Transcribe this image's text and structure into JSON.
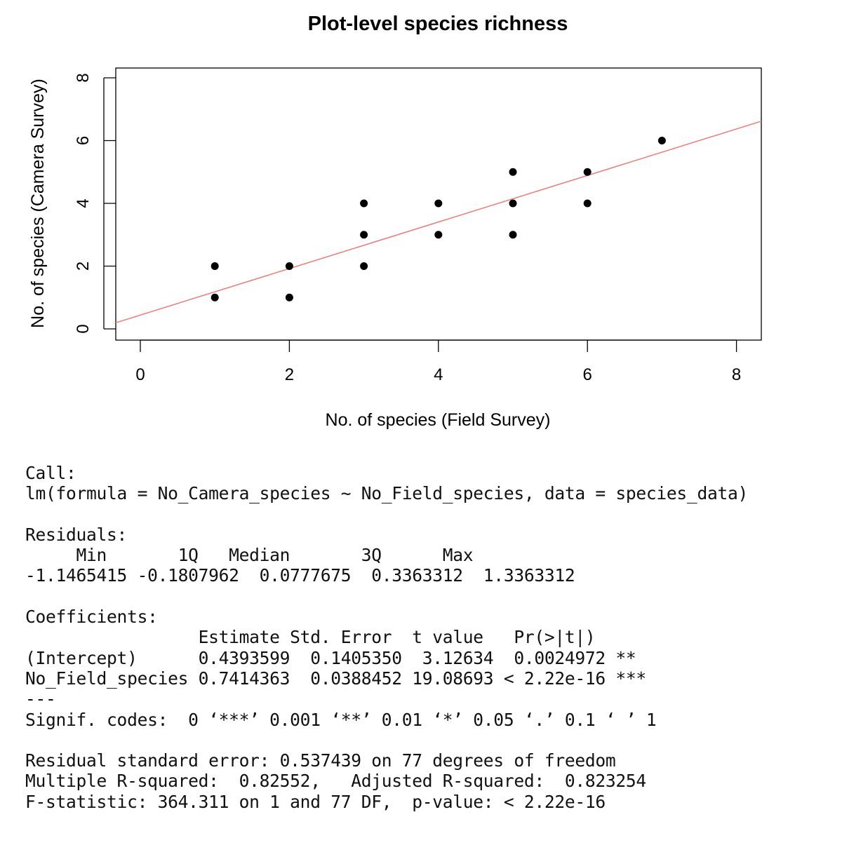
{
  "chart_data": {
    "type": "scatter",
    "title": "Plot-level species richness",
    "xlabel": "No. of species (Field Survey)",
    "ylabel": "No. of species (Camera Survey)",
    "xlim": [
      -0.33,
      8.35
    ],
    "ylim": [
      -0.36,
      8.32
    ],
    "xticks": [
      0,
      2,
      4,
      6,
      8
    ],
    "yticks": [
      0,
      2,
      4,
      6,
      8
    ],
    "grid": false,
    "points": [
      [
        1,
        2
      ],
      [
        1,
        1
      ],
      [
        2,
        2
      ],
      [
        2,
        1
      ],
      [
        3,
        4
      ],
      [
        3,
        3
      ],
      [
        3,
        2
      ],
      [
        4,
        4
      ],
      [
        4,
        3
      ],
      [
        5,
        5
      ],
      [
        5,
        4
      ],
      [
        5,
        3
      ],
      [
        6,
        5
      ],
      [
        6,
        4
      ],
      [
        7,
        6
      ]
    ],
    "fit_line": {
      "intercept": 0.4393599,
      "slope": 0.7414363,
      "color": "#f08080"
    },
    "point_color": "#000000"
  },
  "console": {
    "lines": [
      "Call:",
      "lm(formula = No_Camera_species ~ No_Field_species, data = species_data)",
      "",
      "Residuals:",
      "     Min       1Q   Median       3Q      Max ",
      "-1.1465415 -0.1807962  0.0777675  0.3363312  1.3363312 ",
      "",
      "Coefficients:",
      "                 Estimate Std. Error  t value   Pr(>|t|)    ",
      "(Intercept)      0.4393599  0.1405350  3.12634  0.0024972 ** ",
      "No_Field_species 0.7414363  0.0388452 19.08693 < 2.22e-16 ***",
      "---",
      "Signif. codes:  0 ‘***’ 0.001 ‘**’ 0.01 ‘*’ 0.05 ‘.’ 0.1 ‘ ’ 1",
      "",
      "Residual standard error: 0.537439 on 77 degrees of freedom",
      "Multiple R-squared:  0.82552,   Adjusted R-squared:  0.823254 ",
      "F-statistic: 364.311 on 1 and 77 DF,  p-value: < 2.22e-16"
    ]
  }
}
